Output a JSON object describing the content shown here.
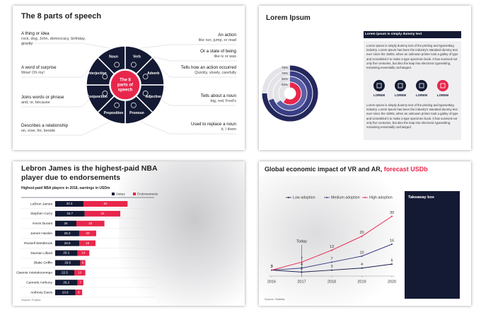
{
  "speech_slide": {
    "title": "The 8 parts of speech",
    "center": [
      "The 8",
      "parts of",
      "speech"
    ],
    "segments": [
      "Noun",
      "Verb",
      "Adverb",
      "Adjective",
      "Pronoun",
      "Preposition",
      "Conjunction",
      "Interjection"
    ],
    "left": [
      {
        "heading": "A thing or idea",
        "text": "rock, dog, John, democracy, birthday, gravity"
      },
      {
        "heading": "A word of surprise",
        "text": "Wow! Oh my!"
      },
      {
        "heading": "Joins words or phrase",
        "text": "and, or, because"
      },
      {
        "heading": "Describes a relationship",
        "text": "on, over, for, beside"
      }
    ],
    "right": [
      {
        "heading": "An action",
        "text": "like run, jump, or read"
      },
      {
        "heading": "Or a state of being",
        "text": "like is or was"
      },
      {
        "heading": "Tells how an action occurred",
        "text": "Quickly, slowly, carefully"
      },
      {
        "heading": "Tells about a noun",
        "text": "big, red, Fred's"
      },
      {
        "heading": "Used to replace a noun",
        "text": "it, I them"
      }
    ]
  },
  "lorem_slide": {
    "title": "Lorem Ipsum",
    "chart": {
      "type": "radial-bar",
      "values": [
        75,
        70,
        65,
        60
      ],
      "value_labels": [
        "75%",
        "70%",
        "65%",
        "60%"
      ],
      "colors": [
        "#23275a",
        "#3a3e84",
        "#5b5fa6",
        "#e8264c"
      ]
    },
    "box_header": "Lorem ipsum is simply dummy text",
    "paragraph_1": "Lorem Ipsum is simply dummy text of the printing and typesetting industry. Lorem Ipsum has been the industry's standard dummy text ever since the 1500s, when an unknown printer took a galley of type and scrambled it to make a type specimen book. It has survived not only five centuries, but also the leap into electronic typesetting, remaining essentially unchanged.",
    "icon_labels": [
      "LOREM",
      "LOREM",
      "LOREM",
      "LOREM"
    ],
    "paragraph_2": "Lorem Ipsum is simply dummy text of the printing and typesetting industry. Lorem Ipsum has been the industry's standard dummy text ever since the 1500s, when an unknown printer took a galley of type and scrambled it to make a type specimen book. It has survived not only five centuries, but also the leap into electronic typesetting, remaining essentially unchanged."
  },
  "nba_slide": {
    "title": "Lebron James is the highest-paid NBA player due to endorsements",
    "source": "Source: Forbes",
    "chart": {
      "type": "bar",
      "subtitle": "Highest-paid NBA players in 2018, earnings in USDm",
      "categories": [
        "LeBron James",
        "Stephen Curry",
        "Kevin Durant",
        "James Harden",
        "Russell Westbrook",
        "Damian Lillard",
        "Blake Griffin",
        "Giannis Antetokounmpo",
        "Carmelo Anthony",
        "Anthony Davis"
      ],
      "series": [
        {
          "name": "Salary",
          "color": "#141a33",
          "values": [
            33.3,
            34.7,
            25,
            28.3,
            28.5,
            26.2,
            29.5,
            22.5,
            26.2,
            23.8
          ]
        },
        {
          "name": "Endorsements",
          "color": "#e8264c",
          "values": [
            52,
            42,
            33,
            20,
            19,
            14,
            6,
            13,
            7,
            8
          ]
        }
      ]
    }
  },
  "vr_slide": {
    "title": "Global economic impact of VR and AR,",
    "title_highlight": "forecast USDb",
    "takeaway": "Takeaway box",
    "source": "Source: Statista",
    "chart": {
      "type": "line",
      "x": [
        2016,
        2017,
        2018,
        2019,
        2020
      ],
      "xlim": [
        2016,
        2020
      ],
      "xticks": [
        2016,
        2017,
        2018,
        2019,
        2020
      ],
      "ylim": [
        0,
        32
      ],
      "annotation": {
        "text": "Today",
        "x": 2017
      },
      "series": [
        {
          "name": "Low adoption",
          "color": "#1b1f4a",
          "values": [
            3,
            2,
            3,
            4,
            6
          ]
        },
        {
          "name": "Medium adoption",
          "color": "#3a3e84",
          "values": [
            3,
            4,
            7,
            10,
            16
          ]
        },
        {
          "name": "High adoption",
          "color": "#e8264c",
          "values": [
            3,
            7,
            13,
            20,
            30
          ]
        }
      ]
    }
  }
}
